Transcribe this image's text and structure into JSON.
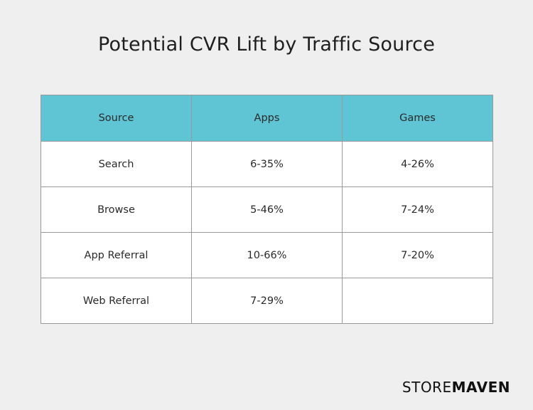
{
  "chart_data": {
    "type": "table",
    "title": "Potential CVR Lift by Traffic Source",
    "columns": [
      "Source",
      "Apps",
      "Games"
    ],
    "rows": [
      [
        "Search",
        "6-35%",
        "4-26%"
      ],
      [
        "Browse",
        "5-46%",
        "7-24%"
      ],
      [
        "App Referral",
        "10-66%",
        "7-20%"
      ],
      [
        "Web Referral",
        "7-29%",
        ""
      ]
    ]
  },
  "logo": {
    "part1": "STORE",
    "part2": "MAVEN"
  },
  "colors": {
    "header_bg": "#5fc4d3",
    "page_bg": "#efefef",
    "cell_bg": "#ffffff",
    "border": "#9a9a9a"
  }
}
